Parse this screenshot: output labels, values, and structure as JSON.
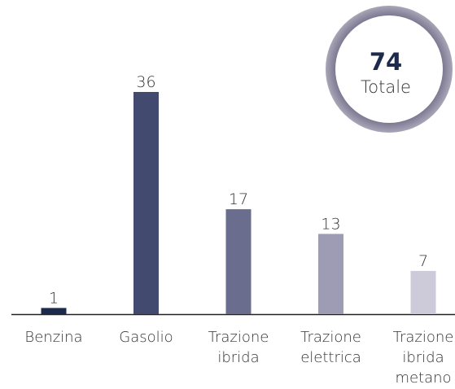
{
  "chart_data": {
    "type": "bar",
    "categories": [
      "Benzina",
      "Gasolio",
      "Trazione ibrida",
      "Trazione elettrica",
      "Trazione ibrida metano"
    ],
    "values": [
      1,
      36,
      17,
      13,
      7
    ],
    "colors": [
      "#1c2a4e",
      "#434a70",
      "#6b6d8e",
      "#9e9cb4",
      "#cdcbd9"
    ],
    "total": 74,
    "total_label": "Totale"
  }
}
